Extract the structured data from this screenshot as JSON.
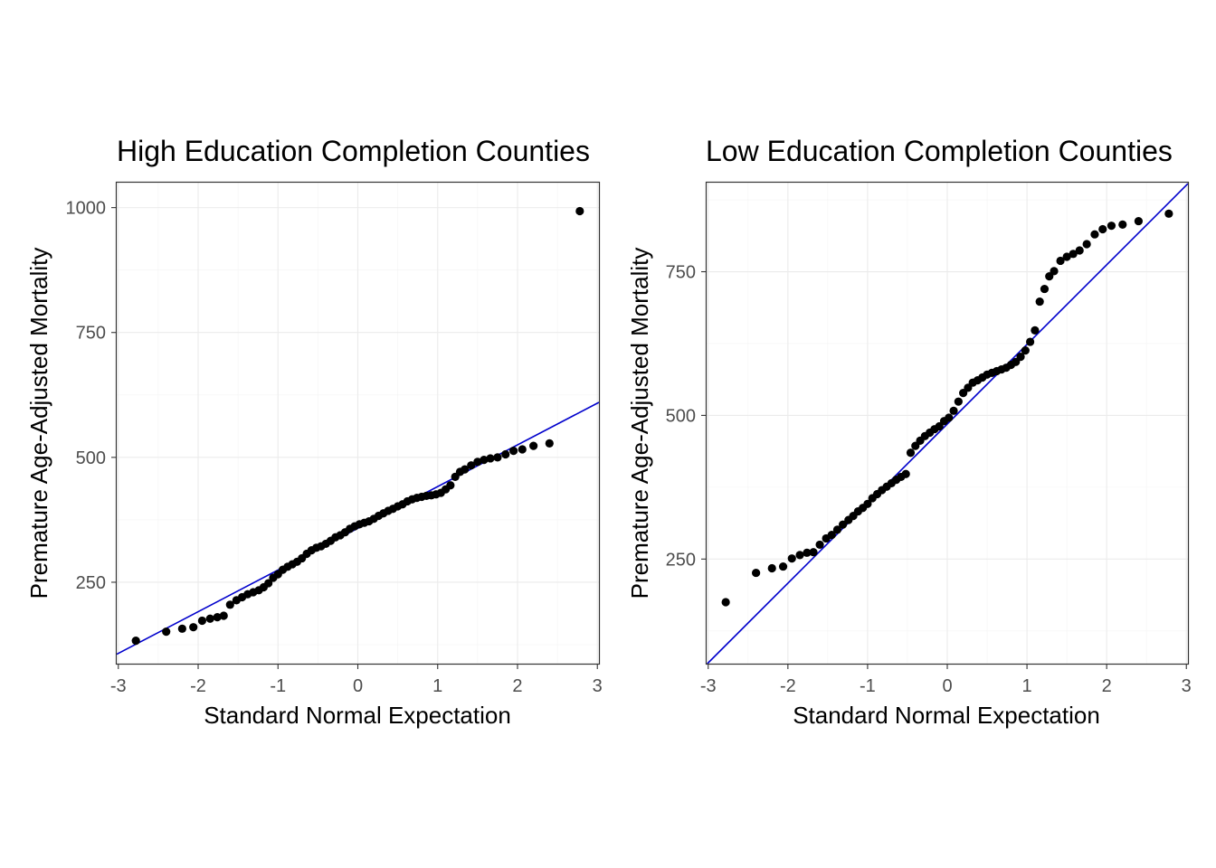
{
  "chart_data": [
    {
      "type": "scatter",
      "title": "High Education Completion Counties",
      "xlabel": "Standard Normal Expectation",
      "ylabel": "Premature Age-Adjusted Mortality",
      "xlim": [
        -3.02,
        3.02
      ],
      "ylim": [
        87,
        1050
      ],
      "xticks": [
        -3,
        -2,
        -1,
        0,
        1,
        2,
        3
      ],
      "xtick_labels": [
        "-3",
        "-2",
        "-1",
        "0",
        "1",
        "2",
        "3"
      ],
      "yticks": [
        250,
        500,
        750,
        1000
      ],
      "ytick_labels": [
        "250",
        "500",
        "750",
        "1000"
      ],
      "grid": true,
      "line_color": "#0000cc",
      "point_color": "#000000",
      "reference_line": {
        "intercept": 358,
        "slope": 83.5
      },
      "series": [
        {
          "x": [
            -2.78,
            -2.4,
            -2.2,
            -2.06,
            -1.95,
            -1.85,
            -1.76,
            -1.68,
            -1.6,
            -1.52,
            -1.45,
            -1.38,
            -1.31,
            -1.24,
            -1.18,
            -1.12,
            -1.06,
            -1.0,
            -0.94,
            -0.88,
            -0.82,
            -0.76,
            -0.7,
            -0.64,
            -0.58,
            -0.52,
            -0.46,
            -0.4,
            -0.34,
            -0.28,
            -0.22,
            -0.16,
            -0.1,
            -0.04,
            0.02,
            0.08,
            0.14,
            0.2,
            0.26,
            0.32,
            0.38,
            0.44,
            0.5,
            0.56,
            0.62,
            0.68,
            0.74,
            0.8,
            0.86,
            0.92,
            0.98,
            1.04,
            1.1,
            1.16,
            1.22,
            1.28,
            1.34,
            1.42,
            1.5,
            1.58,
            1.66,
            1.75,
            1.85,
            1.95,
            2.06,
            2.2,
            2.4,
            2.78
          ],
          "y": [
            133,
            151,
            157,
            160,
            173,
            177,
            180,
            183,
            205,
            214,
            220,
            226,
            230,
            234,
            240,
            248,
            259,
            266,
            275,
            281,
            286,
            291,
            298,
            307,
            314,
            319,
            322,
            327,
            333,
            340,
            344,
            350,
            357,
            362,
            366,
            369,
            372,
            377,
            383,
            388,
            393,
            397,
            402,
            406,
            412,
            416,
            419,
            421,
            423,
            424,
            426,
            429,
            436,
            444,
            461,
            471,
            476,
            484,
            491,
            495,
            498,
            500,
            506,
            513,
            516,
            523,
            528,
            993
          ]
        }
      ]
    },
    {
      "type": "scatter",
      "title": "Low Education Completion Counties",
      "xlabel": "Standard Normal Expectation",
      "ylabel": "Premature Age-Adjusted Mortality",
      "xlim": [
        -3.02,
        3.02
      ],
      "ylim": [
        68,
        905
      ],
      "xticks": [
        -3,
        -2,
        -1,
        0,
        1,
        2,
        3
      ],
      "xtick_labels": [
        "-3",
        "-2",
        "-1",
        "0",
        "1",
        "2",
        "3"
      ],
      "yticks": [
        250,
        500,
        750
      ],
      "ytick_labels": [
        "250",
        "500",
        "750"
      ],
      "grid": true,
      "line_color": "#0000cc",
      "point_color": "#000000",
      "reference_line": {
        "intercept": 485,
        "slope": 138.5
      },
      "series": [
        {
          "x": [
            -2.78,
            -2.4,
            -2.2,
            -2.06,
            -1.95,
            -1.85,
            -1.76,
            -1.68,
            -1.6,
            -1.52,
            -1.45,
            -1.38,
            -1.31,
            -1.24,
            -1.18,
            -1.12,
            -1.06,
            -1.0,
            -0.94,
            -0.88,
            -0.82,
            -0.76,
            -0.7,
            -0.64,
            -0.58,
            -0.52,
            -0.46,
            -0.4,
            -0.34,
            -0.28,
            -0.22,
            -0.16,
            -0.1,
            -0.04,
            0.02,
            0.08,
            0.14,
            0.2,
            0.26,
            0.32,
            0.38,
            0.44,
            0.5,
            0.56,
            0.62,
            0.68,
            0.74,
            0.8,
            0.86,
            0.92,
            0.98,
            1.04,
            1.1,
            1.16,
            1.22,
            1.28,
            1.34,
            1.42,
            1.5,
            1.58,
            1.66,
            1.75,
            1.85,
            1.95,
            2.06,
            2.2,
            2.4,
            2.78
          ],
          "y": [
            175,
            226,
            234,
            237,
            251,
            257,
            261,
            262,
            275,
            286,
            292,
            301,
            310,
            318,
            325,
            333,
            339,
            346,
            356,
            363,
            370,
            376,
            382,
            388,
            393,
            398,
            435,
            447,
            456,
            464,
            470,
            476,
            481,
            490,
            496,
            508,
            524,
            539,
            548,
            557,
            561,
            566,
            571,
            574,
            577,
            580,
            583,
            588,
            593,
            602,
            613,
            628,
            648,
            698,
            720,
            742,
            751,
            769,
            776,
            781,
            787,
            798,
            815,
            824,
            830,
            832,
            838,
            851
          ]
        }
      ]
    }
  ]
}
